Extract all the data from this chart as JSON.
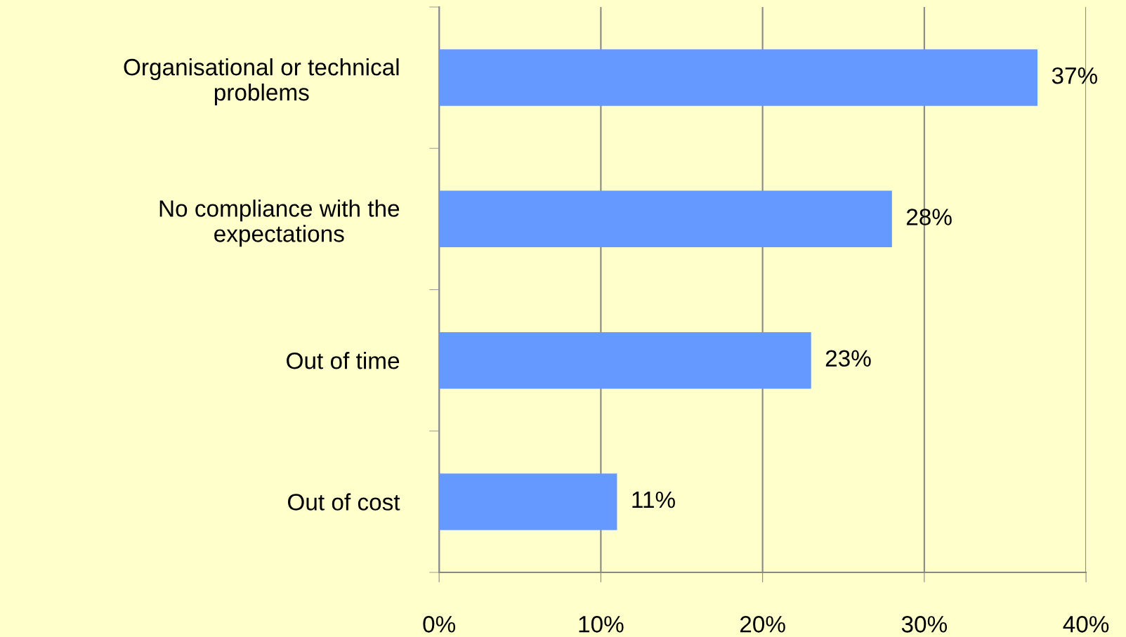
{
  "chart_data": {
    "type": "bar",
    "orientation": "horizontal",
    "categories": [
      "Organisational or technical\nproblems",
      "No compliance with the\nexpectations",
      "Out of time",
      "Out of cost"
    ],
    "values": [
      37,
      28,
      23,
      11
    ],
    "value_labels": [
      "37%",
      "28%",
      "23%",
      "11%"
    ],
    "color": "#6699ff",
    "xlim": [
      0,
      40
    ],
    "xticks": [
      {
        "value": 0,
        "label": "0%"
      },
      {
        "value": 10,
        "label": "10%"
      },
      {
        "value": 20,
        "label": "20%"
      },
      {
        "value": 30,
        "label": "30%"
      },
      {
        "value": 40,
        "label": "40%"
      }
    ],
    "grid": "x",
    "legend": false
  }
}
